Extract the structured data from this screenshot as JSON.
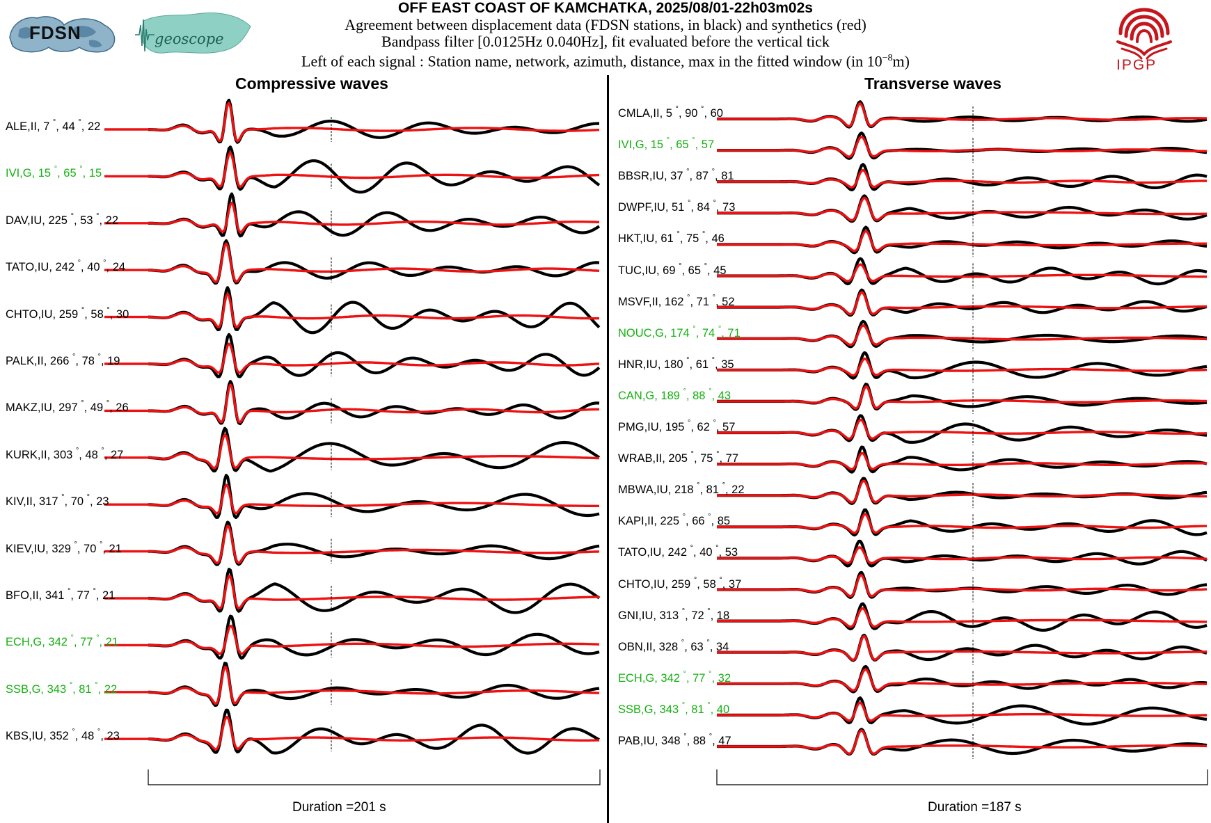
{
  "header": {
    "title": "OFF EAST COAST OF KAMCHATKA, 2025/08/01-22h03m02s",
    "line1": "Agreement between displacement data (FDSN stations, in black) and synthetics (red)",
    "line2": "Bandpass filter [0.0125Hz 0.040Hz], fit evaluated before the vertical tick",
    "line3_prefix": "Left of each signal : Station name, network, azimuth, distance, max in the fitted window (in 10",
    "line3_exp": "−8",
    "line3_suffix": "m)"
  },
  "logos": {
    "fdsn": "FDSN",
    "geoscope": "geoscope",
    "ipgp": "IPGP"
  },
  "colors": {
    "data": "#000000",
    "synthetic": "#ee1111",
    "highlight_label": "#13b00f",
    "ipgp": "#c4161c",
    "fdsn_map": "#8fb3c8",
    "geoscope_map": "#8fd0c4"
  },
  "chart_data": [
    {
      "type": "line",
      "title": "Compressive waves",
      "duration_label": "Duration =201 s",
      "series": [
        {
          "name": "data",
          "color": "black"
        },
        {
          "name": "synthetics",
          "color": "red"
        }
      ],
      "stations": [
        {
          "station": "ALE",
          "network": "II",
          "azimuth": 7,
          "distance": 44,
          "max": 22,
          "highlight": false
        },
        {
          "station": "IVI",
          "network": "G",
          "azimuth": 15,
          "distance": 65,
          "max": 15,
          "highlight": true
        },
        {
          "station": "DAV",
          "network": "IU",
          "azimuth": 225,
          "distance": 53,
          "max": 22,
          "highlight": false
        },
        {
          "station": "TATO",
          "network": "IU",
          "azimuth": 242,
          "distance": 40,
          "max": 24,
          "highlight": false
        },
        {
          "station": "CHTO",
          "network": "IU",
          "azimuth": 259,
          "distance": 58,
          "max": 30,
          "highlight": false
        },
        {
          "station": "PALK",
          "network": "II",
          "azimuth": 266,
          "distance": 78,
          "max": 19,
          "highlight": false
        },
        {
          "station": "MAKZ",
          "network": "IU",
          "azimuth": 297,
          "distance": 49,
          "max": 26,
          "highlight": false
        },
        {
          "station": "KURK",
          "network": "II",
          "azimuth": 303,
          "distance": 48,
          "max": 27,
          "highlight": false
        },
        {
          "station": "KIV",
          "network": "II",
          "azimuth": 317,
          "distance": 70,
          "max": 23,
          "highlight": false
        },
        {
          "station": "KIEV",
          "network": "IU",
          "azimuth": 329,
          "distance": 70,
          "max": 21,
          "highlight": false
        },
        {
          "station": "BFO",
          "network": "II",
          "azimuth": 341,
          "distance": 77,
          "max": 21,
          "highlight": false
        },
        {
          "station": "ECH",
          "network": "G",
          "azimuth": 342,
          "distance": 77,
          "max": 21,
          "highlight": true
        },
        {
          "station": "SSB",
          "network": "G",
          "azimuth": 343,
          "distance": 81,
          "max": 22,
          "highlight": true
        },
        {
          "station": "KBS",
          "network": "IU",
          "azimuth": 352,
          "distance": 48,
          "max": 23,
          "highlight": false
        }
      ]
    },
    {
      "type": "line",
      "title": "Transverse waves",
      "duration_label": "Duration =187 s",
      "series": [
        {
          "name": "data",
          "color": "black"
        },
        {
          "name": "synthetics",
          "color": "red"
        }
      ],
      "stations": [
        {
          "station": "CMLA",
          "network": "II",
          "azimuth": 5,
          "distance": 90,
          "max": 60,
          "highlight": false
        },
        {
          "station": "IVI",
          "network": "G",
          "azimuth": 15,
          "distance": 65,
          "max": 57,
          "highlight": true
        },
        {
          "station": "BBSR",
          "network": "IU",
          "azimuth": 37,
          "distance": 87,
          "max": 81,
          "highlight": false
        },
        {
          "station": "DWPF",
          "network": "IU",
          "azimuth": 51,
          "distance": 84,
          "max": 73,
          "highlight": false
        },
        {
          "station": "HKT",
          "network": "IU",
          "azimuth": 61,
          "distance": 75,
          "max": 46,
          "highlight": false
        },
        {
          "station": "TUC",
          "network": "IU",
          "azimuth": 69,
          "distance": 65,
          "max": 45,
          "highlight": false
        },
        {
          "station": "MSVF",
          "network": "II",
          "azimuth": 162,
          "distance": 71,
          "max": 52,
          "highlight": false
        },
        {
          "station": "NOUC",
          "network": "G",
          "azimuth": 174,
          "distance": 74,
          "max": 71,
          "highlight": true
        },
        {
          "station": "HNR",
          "network": "IU",
          "azimuth": 180,
          "distance": 61,
          "max": 35,
          "highlight": false
        },
        {
          "station": "CAN",
          "network": "G",
          "azimuth": 189,
          "distance": 88,
          "max": 43,
          "highlight": true
        },
        {
          "station": "PMG",
          "network": "IU",
          "azimuth": 195,
          "distance": 62,
          "max": 57,
          "highlight": false
        },
        {
          "station": "WRAB",
          "network": "II",
          "azimuth": 205,
          "distance": 75,
          "max": 77,
          "highlight": false
        },
        {
          "station": "MBWA",
          "network": "IU",
          "azimuth": 218,
          "distance": 81,
          "max": 22,
          "highlight": false
        },
        {
          "station": "KAPI",
          "network": "II",
          "azimuth": 225,
          "distance": 66,
          "max": 85,
          "highlight": false
        },
        {
          "station": "TATO",
          "network": "IU",
          "azimuth": 242,
          "distance": 40,
          "max": 53,
          "highlight": false
        },
        {
          "station": "CHTO",
          "network": "IU",
          "azimuth": 259,
          "distance": 58,
          "max": 37,
          "highlight": false
        },
        {
          "station": "GNI",
          "network": "IU",
          "azimuth": 313,
          "distance": 72,
          "max": 18,
          "highlight": false
        },
        {
          "station": "OBN",
          "network": "II",
          "azimuth": 328,
          "distance": 63,
          "max": 34,
          "highlight": false
        },
        {
          "station": "ECH",
          "network": "G",
          "azimuth": 342,
          "distance": 77,
          "max": 32,
          "highlight": true
        },
        {
          "station": "SSB",
          "network": "G",
          "azimuth": 343,
          "distance": 81,
          "max": 40,
          "highlight": true
        },
        {
          "station": "PAB",
          "network": "IU",
          "azimuth": 348,
          "distance": 88,
          "max": 47,
          "highlight": false
        }
      ]
    }
  ]
}
